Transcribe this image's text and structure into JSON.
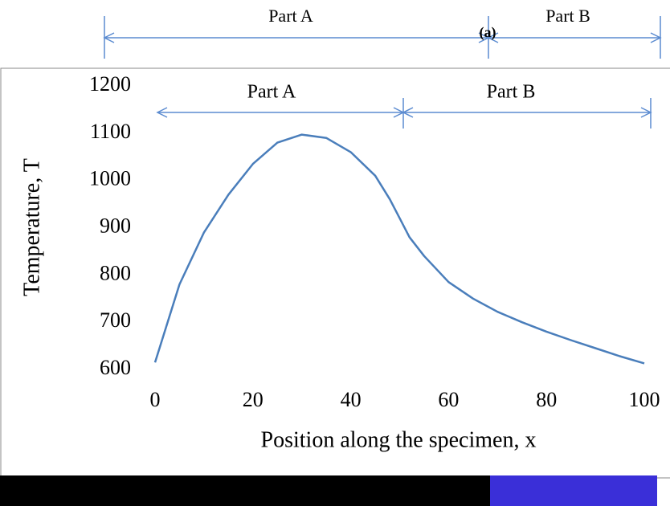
{
  "chart_data": {
    "type": "line",
    "annotations": [
      "Part A",
      "(a)",
      "Part B",
      "Part A",
      "Part B"
    ],
    "xlabel": "Position along the specimen, x",
    "ylabel": "Temperature, T",
    "x": [
      0,
      5,
      10,
      15,
      20,
      25,
      30,
      35,
      40,
      45,
      48,
      50,
      52,
      55,
      60,
      65,
      70,
      75,
      80,
      85,
      90,
      95,
      100
    ],
    "values": [
      615,
      780,
      890,
      970,
      1035,
      1080,
      1097,
      1090,
      1060,
      1010,
      960,
      920,
      880,
      840,
      785,
      750,
      722,
      700,
      680,
      662,
      645,
      628,
      613
    ],
    "color": "#4a7ebb",
    "xlim": [
      0,
      100
    ],
    "xticks": [
      0,
      20,
      40,
      60,
      80,
      100
    ],
    "ylim": [
      600,
      1200
    ],
    "yticks": [
      600,
      700,
      800,
      900,
      1000,
      1100,
      1200
    ]
  }
}
